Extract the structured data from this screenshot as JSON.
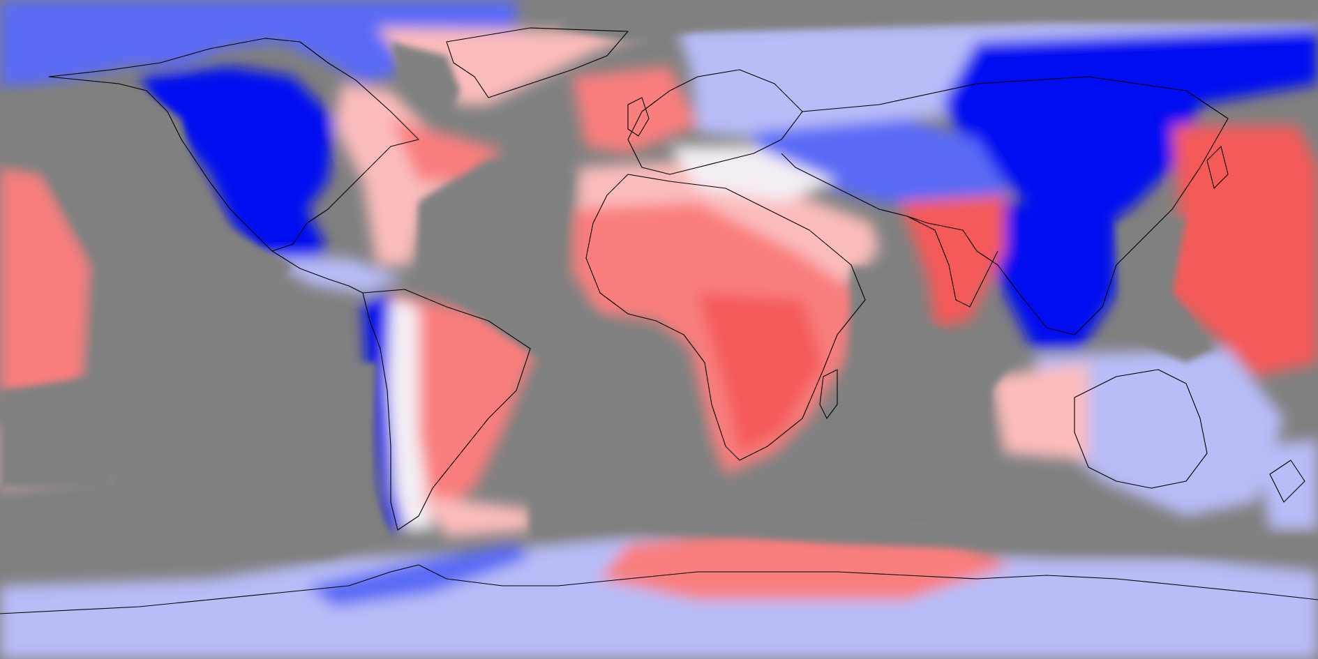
{
  "map": {
    "projection": "equirectangular",
    "background_color": "#808080",
    "coastline_color": "#000000",
    "colors": {
      "strong_blue": "#0010f0",
      "medium_blue": "#5a6af5",
      "light_blue": "#b8bcf7",
      "near_white": "#f4eef4",
      "light_red": "#fbbcbc",
      "medium_red": "#f97e7e",
      "strong_red": "#f45a5a"
    },
    "legend": null
  }
}
